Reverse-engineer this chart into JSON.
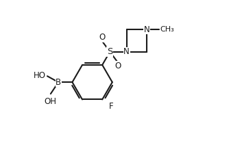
{
  "bg_color": "#ffffff",
  "line_color": "#1a1a1a",
  "line_width": 1.5,
  "font_size": 8.5,
  "figsize": [
    3.34,
    2.12
  ],
  "dpi": 100,
  "xlim": [
    0.5,
    6.5
  ],
  "ylim": [
    0.3,
    5.5
  ]
}
